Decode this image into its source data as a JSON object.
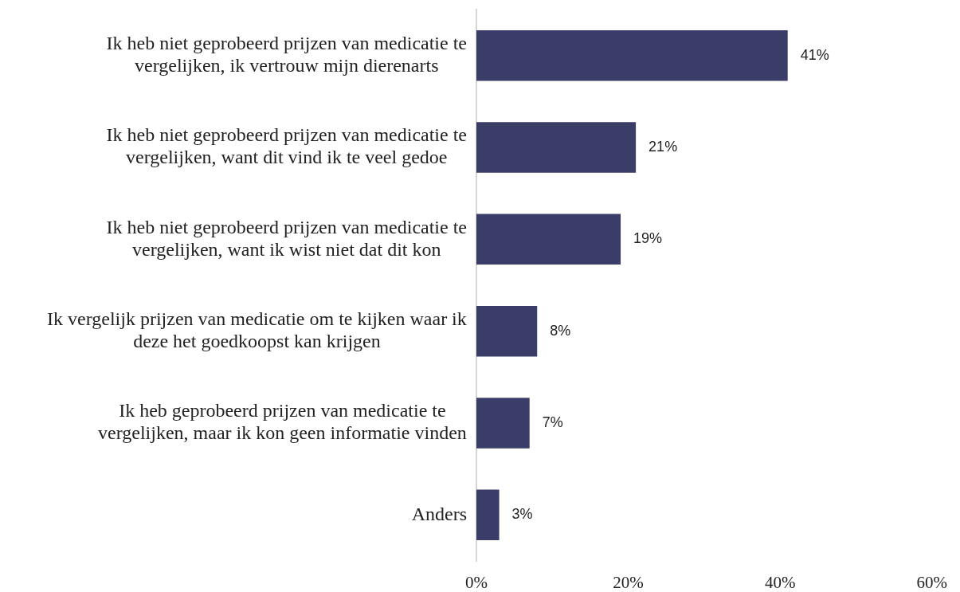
{
  "chart_data": {
    "type": "bar",
    "orientation": "horizontal",
    "categories": [
      "Ik heb niet geprobeerd prijzen van medicatie te vergelijken, ik vertrouw mijn dierenarts",
      "Ik heb niet geprobeerd prijzen van medicatie te vergelijken, want dit vind ik te veel gedoe",
      "Ik heb niet geprobeerd prijzen van medicatie te vergelijken, want ik wist niet dat dit kon",
      "Ik vergelijk prijzen van medicatie om te kijken waar ik deze het goedkoopst kan krijgen",
      "Ik heb geprobeerd prijzen van medicatie te vergelijken, maar ik kon geen informatie vinden",
      "Anders"
    ],
    "values": [
      41,
      21,
      19,
      8,
      7,
      3
    ],
    "value_labels": [
      "41%",
      "21%",
      "19%",
      "8%",
      "7%",
      "3%"
    ],
    "color": "#3a3d67",
    "xlim": [
      0,
      60
    ],
    "xticks": [
      {
        "value": 0,
        "label": "0%"
      },
      {
        "value": 20,
        "label": "20%"
      },
      {
        "value": 40,
        "label": "40%"
      },
      {
        "value": 60,
        "label": "60%"
      }
    ]
  }
}
